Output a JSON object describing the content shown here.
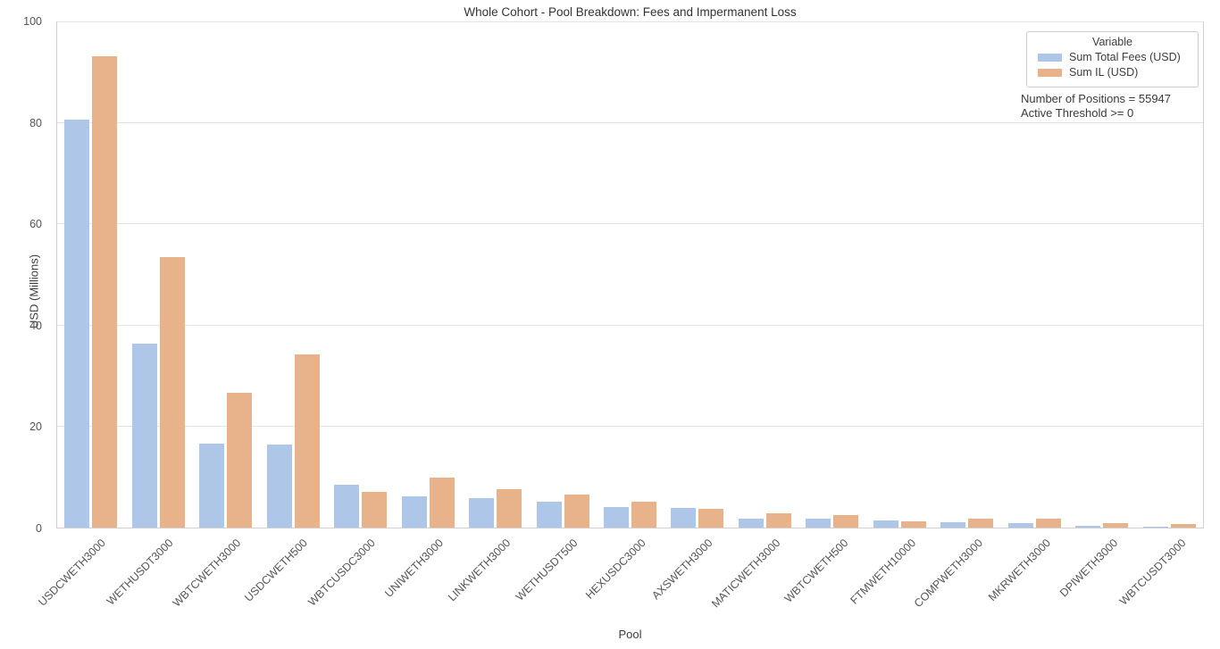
{
  "chart_data": {
    "type": "bar",
    "title": "Whole Cohort - Pool Breakdown: Fees and Impermanent Loss",
    "xlabel": "Pool",
    "ylabel": "USD (Millions)",
    "ylim": [
      0,
      100
    ],
    "yticks": [
      0,
      20,
      40,
      60,
      80,
      100
    ],
    "grid": "horizontal",
    "legend_position": "upper right",
    "legend_title": "Variable",
    "categories": [
      "USDCWETH3000",
      "WETHUSDT3000",
      "WBTCWETH3000",
      "USDCWETH500",
      "WBTCUSDC3000",
      "UNIWETH3000",
      "LINKWETH3000",
      "WETHUSDT500",
      "HEXUSDC3000",
      "AXSWETH3000",
      "MATICWETH3000",
      "WBTCWETH500",
      "FTMWETH10000",
      "COMPWETH3000",
      "MKRWETH3000",
      "DPIWETH3000",
      "WBTCUSDT3000"
    ],
    "series": [
      {
        "name": "Sum Total Fees (USD)",
        "color": "#aec7e8",
        "values": [
          80.8,
          36.4,
          16.6,
          16.4,
          8.5,
          6.2,
          5.9,
          5.2,
          4.0,
          3.9,
          1.8,
          1.8,
          1.5,
          1.1,
          0.9,
          0.4,
          0.1
        ]
      },
      {
        "name": "Sum IL (USD)",
        "color": "#e8b28a",
        "values": [
          93.3,
          53.6,
          26.7,
          34.3,
          7.0,
          9.9,
          7.6,
          6.5,
          5.1,
          3.7,
          2.8,
          2.5,
          1.2,
          1.8,
          1.7,
          0.8,
          0.65
        ]
      }
    ],
    "annotations": [
      "Number of Positions = 55947",
      "Active Threshold >= 0"
    ]
  }
}
